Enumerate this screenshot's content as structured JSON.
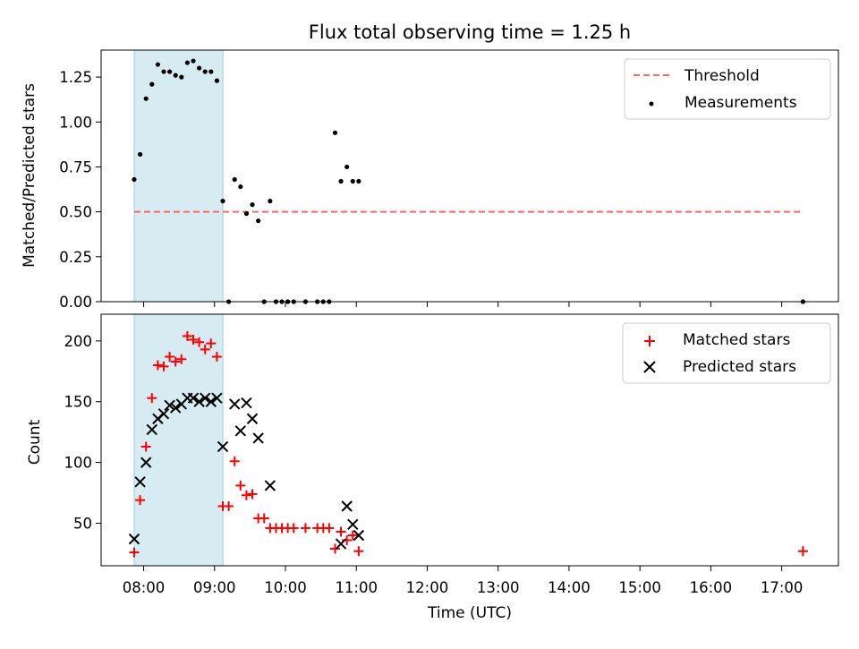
{
  "chart_data": [
    {
      "type": "scatter",
      "title": "Flux total observing time = 1.25 h",
      "xlabel": "",
      "ylabel": "Matched/Predicted stars",
      "ylim": [
        0,
        1.4
      ],
      "yticks": [
        "0.00",
        "0.25",
        "0.50",
        "0.75",
        "1.00",
        "1.25"
      ],
      "ytick_values": [
        0,
        0.25,
        0.5,
        0.75,
        1.0,
        1.25
      ],
      "shaded_span": [
        "07:52",
        "09:07"
      ],
      "shaded_color": "#add8e6",
      "threshold": {
        "name": "Threshold",
        "value": 0.5,
        "x": [
          "07:52",
          "17:18"
        ],
        "color": "#ff6666",
        "style": "dashed"
      },
      "legend_position": "upper right",
      "series": [
        {
          "name": "Measurements",
          "color": "#000000",
          "marker": "dot",
          "x": [
            "07:52",
            "07:57",
            "08:02",
            "08:07",
            "08:12",
            "08:17",
            "08:22",
            "08:27",
            "08:32",
            "08:37",
            "08:42",
            "08:47",
            "08:52",
            "08:57",
            "09:02",
            "09:07",
            "09:12",
            "09:17",
            "09:22",
            "09:27",
            "09:32",
            "09:37",
            "09:42",
            "09:47",
            "09:52",
            "09:57",
            "10:02",
            "10:07",
            "10:17",
            "10:27",
            "10:32",
            "10:37",
            "10:42",
            "10:47",
            "10:52",
            "10:57",
            "11:02",
            "17:18"
          ],
          "values": [
            0.68,
            0.82,
            1.13,
            1.21,
            1.32,
            1.28,
            1.28,
            1.26,
            1.25,
            1.33,
            1.34,
            1.3,
            1.28,
            1.28,
            1.23,
            0.56,
            0.0,
            0.68,
            0.64,
            0.49,
            0.54,
            0.45,
            0.0,
            0.56,
            0.0,
            0.0,
            0.0,
            0.0,
            0.0,
            0.0,
            0.0,
            0.0,
            0.94,
            0.67,
            0.75,
            0.67,
            0.67,
            0.0
          ]
        }
      ]
    },
    {
      "type": "scatter",
      "title": "",
      "xlabel": "Time (UTC)",
      "ylabel": "Count",
      "ylim": [
        15,
        222
      ],
      "yticks": [
        "50",
        "100",
        "150",
        "200"
      ],
      "ytick_values": [
        50,
        100,
        150,
        200
      ],
      "xlim": [
        "07:24",
        "17:48"
      ],
      "xticks": [
        "08:00",
        "09:00",
        "10:00",
        "11:00",
        "12:00",
        "13:00",
        "14:00",
        "15:00",
        "16:00",
        "17:00"
      ],
      "shaded_span": [
        "07:52",
        "09:07"
      ],
      "shaded_color": "#add8e6",
      "legend_position": "upper right",
      "series": [
        {
          "name": "Matched stars",
          "color": "#ff0000",
          "marker": "plus",
          "x": [
            "07:52",
            "07:57",
            "08:02",
            "08:07",
            "08:12",
            "08:17",
            "08:22",
            "08:27",
            "08:32",
            "08:37",
            "08:42",
            "08:47",
            "08:52",
            "08:57",
            "09:02",
            "09:07",
            "09:12",
            "09:17",
            "09:22",
            "09:27",
            "09:32",
            "09:37",
            "09:42",
            "09:47",
            "09:52",
            "09:57",
            "10:02",
            "10:07",
            "10:17",
            "10:27",
            "10:32",
            "10:37",
            "10:42",
            "10:47",
            "10:52",
            "10:57",
            "11:02",
            "17:18"
          ],
          "values": [
            26,
            69,
            113,
            153,
            180,
            179,
            187,
            183,
            185,
            204,
            201,
            199,
            193,
            198,
            187,
            64,
            64,
            101,
            81,
            73,
            74,
            54,
            54,
            46,
            46,
            46,
            46,
            46,
            46,
            46,
            46,
            46,
            29,
            43,
            36,
            40,
            27,
            27
          ]
        },
        {
          "name": "Predicted stars",
          "color": "#000000",
          "marker": "x",
          "x": [
            "07:52",
            "07:57",
            "08:02",
            "08:07",
            "08:12",
            "08:17",
            "08:22",
            "08:27",
            "08:32",
            "08:37",
            "08:42",
            "08:47",
            "08:52",
            "08:57",
            "09:02",
            "09:07",
            "09:17",
            "09:22",
            "09:27",
            "09:32",
            "09:37",
            "09:47",
            "10:47",
            "10:52",
            "10:57",
            "11:02"
          ],
          "values": [
            37,
            84,
            100,
            127,
            136,
            140,
            147,
            145,
            148,
            153,
            153,
            150,
            153,
            150,
            153,
            113,
            148,
            126,
            149,
            136,
            120,
            81,
            33,
            64,
            49,
            40
          ]
        }
      ]
    }
  ]
}
